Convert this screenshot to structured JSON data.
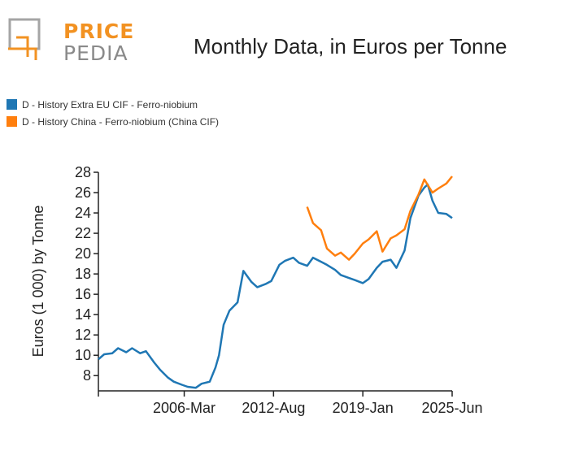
{
  "header": {
    "logo_top": "PRICE",
    "logo_bottom": "PEDIA",
    "title": "Monthly Data, in Euros per Tonne"
  },
  "colors": {
    "series_blue": "#1f77b4",
    "series_orange": "#ff7f0e",
    "logo_orange": "#f29222",
    "logo_gray": "#8a8a8a"
  },
  "chart_data": {
    "type": "line",
    "title": "Monthly Data, in Euros per Tonne",
    "xlabel": "",
    "ylabel": "Euros (1 000) by Tonne",
    "x_ticks": [
      "2006-Mar",
      "2012-Aug",
      "2019-Jan",
      "2025-Jun"
    ],
    "y_ticks": [
      8,
      10,
      12,
      14,
      16,
      18,
      20,
      22,
      24,
      26,
      28
    ],
    "xlim": [
      "2000-01",
      "2025-06"
    ],
    "ylim": [
      6.5,
      28
    ],
    "grid": false,
    "legend_position": "top-left",
    "series": [
      {
        "name": "D - History Extra EU CIF - Ferro-niobium",
        "color": "#1f77b4",
        "points": [
          [
            "2000-01",
            9.6
          ],
          [
            "2000-06",
            10.1
          ],
          [
            "2001-01",
            10.2
          ],
          [
            "2001-06",
            10.7
          ],
          [
            "2002-01",
            10.3
          ],
          [
            "2002-06",
            10.7
          ],
          [
            "2003-01",
            10.2
          ],
          [
            "2003-06",
            10.4
          ],
          [
            "2004-01",
            9.3
          ],
          [
            "2004-06",
            8.6
          ],
          [
            "2005-01",
            7.8
          ],
          [
            "2005-06",
            7.4
          ],
          [
            "2006-01",
            7.1
          ],
          [
            "2006-06",
            6.9
          ],
          [
            "2007-01",
            6.8
          ],
          [
            "2007-06",
            7.2
          ],
          [
            "2008-01",
            7.4
          ],
          [
            "2008-06",
            8.8
          ],
          [
            "2008-09",
            10.0
          ],
          [
            "2009-01",
            13.0
          ],
          [
            "2009-06",
            14.4
          ],
          [
            "2010-01",
            15.2
          ],
          [
            "2010-06",
            18.3
          ],
          [
            "2011-01",
            17.2
          ],
          [
            "2011-06",
            16.7
          ],
          [
            "2012-01",
            17.0
          ],
          [
            "2012-06",
            17.3
          ],
          [
            "2013-01",
            18.9
          ],
          [
            "2013-06",
            19.3
          ],
          [
            "2014-01",
            19.6
          ],
          [
            "2014-06",
            19.1
          ],
          [
            "2015-01",
            18.8
          ],
          [
            "2015-06",
            19.6
          ],
          [
            "2016-01",
            19.2
          ],
          [
            "2016-06",
            18.9
          ],
          [
            "2017-01",
            18.4
          ],
          [
            "2017-06",
            17.9
          ],
          [
            "2018-01",
            17.6
          ],
          [
            "2018-06",
            17.4
          ],
          [
            "2019-01",
            17.1
          ],
          [
            "2019-06",
            17.5
          ],
          [
            "2020-01",
            18.6
          ],
          [
            "2020-06",
            19.2
          ],
          [
            "2021-01",
            19.4
          ],
          [
            "2021-06",
            18.6
          ],
          [
            "2022-01",
            20.3
          ],
          [
            "2022-06",
            23.5
          ],
          [
            "2023-01",
            25.7
          ],
          [
            "2023-06",
            26.5
          ],
          [
            "2023-09",
            26.8
          ],
          [
            "2024-01",
            25.2
          ],
          [
            "2024-06",
            24.0
          ],
          [
            "2025-01",
            23.9
          ],
          [
            "2025-06",
            23.5
          ]
        ]
      },
      {
        "name": "D - History China - Ferro-niobium (China CIF)",
        "color": "#ff7f0e",
        "points": [
          [
            "2015-01",
            24.6
          ],
          [
            "2015-06",
            23.0
          ],
          [
            "2016-01",
            22.3
          ],
          [
            "2016-06",
            20.5
          ],
          [
            "2017-01",
            19.8
          ],
          [
            "2017-06",
            20.1
          ],
          [
            "2018-01",
            19.4
          ],
          [
            "2018-06",
            20.0
          ],
          [
            "2019-01",
            21.0
          ],
          [
            "2019-06",
            21.4
          ],
          [
            "2020-01",
            22.2
          ],
          [
            "2020-06",
            20.2
          ],
          [
            "2021-01",
            21.5
          ],
          [
            "2021-06",
            21.8
          ],
          [
            "2022-01",
            22.4
          ],
          [
            "2022-06",
            24.2
          ],
          [
            "2023-01",
            25.8
          ],
          [
            "2023-06",
            27.3
          ],
          [
            "2024-01",
            26.0
          ],
          [
            "2024-06",
            26.4
          ],
          [
            "2025-01",
            26.9
          ],
          [
            "2025-06",
            27.6
          ]
        ]
      }
    ]
  }
}
